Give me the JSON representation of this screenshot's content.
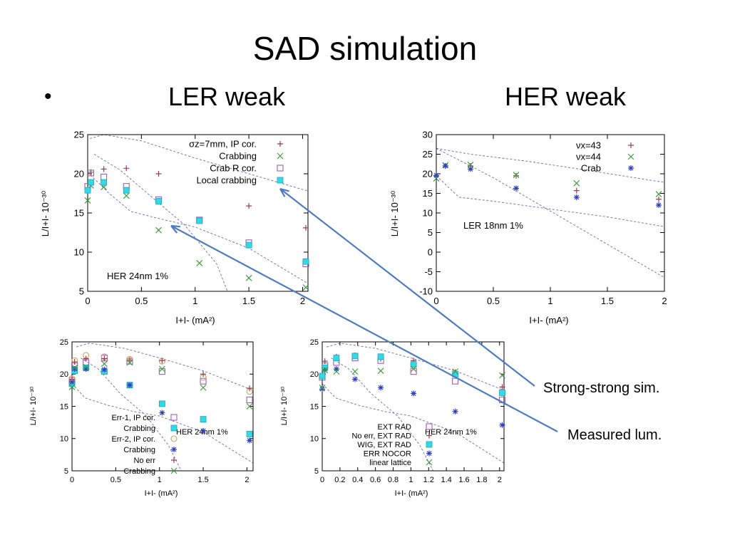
{
  "slide": {
    "title": "SAD simulation",
    "bullet": "•",
    "left_heading": "LER weak",
    "right_heading": "HER weak",
    "note_strong": "Strong-strong sim.",
    "note_measured": "Measured lum."
  },
  "chart_data": [
    {
      "id": "top-left",
      "type": "scatter",
      "title": "",
      "xlabel": "I+I- (mA²)",
      "ylabel": "L/I+I- 10⁻³⁰",
      "xlim": [
        0,
        2.05
      ],
      "ylim": [
        5,
        25
      ],
      "xticks": [
        0,
        0.5,
        1,
        1.5,
        2
      ],
      "xtick_labels": [
        "0",
        "0.5",
        "1",
        "1.5",
        "2"
      ],
      "yticks": [
        5,
        10,
        15,
        20,
        25
      ],
      "ytick_labels": [
        "5",
        "10",
        "15",
        "20",
        "25"
      ],
      "annotation": "HER 24nm 1%",
      "grid": false,
      "legend_position": "top-right",
      "series": [
        {
          "name": "σz=7mm, IP cor.",
          "marker": "plus",
          "color": "#9b3b5a",
          "x": [
            0.0,
            0.03,
            0.15,
            0.36,
            0.66,
            1.5,
            2.03
          ],
          "y": [
            18.0,
            20.2,
            20.6,
            20.7,
            20.0,
            15.9,
            13.1
          ]
        },
        {
          "name": "Crabbing",
          "marker": "x",
          "color": "#3f9b3f",
          "x": [
            0.0,
            0.03,
            0.15,
            0.36,
            0.66,
            1.04,
            1.5,
            2.03
          ],
          "y": [
            16.6,
            18.5,
            18.3,
            17.2,
            12.8,
            8.6,
            6.7,
            5.5
          ]
        },
        {
          "name": "Crab R cor.",
          "marker": "open-square",
          "color": "#a05cb8",
          "x": [
            0.0,
            0.03,
            0.15,
            0.36,
            0.66,
            1.04,
            1.5,
            2.03
          ],
          "y": [
            18.4,
            20.1,
            19.6,
            18.4,
            16.7,
            14.1,
            11.2,
            8.5
          ]
        },
        {
          "name": "Local crabbing",
          "marker": "filled-square",
          "color": "#35d9e6",
          "x": [
            0.0,
            0.03,
            0.15,
            0.36,
            0.66,
            1.04,
            1.5,
            2.03
          ],
          "y": [
            17.9,
            18.9,
            18.9,
            17.9,
            16.5,
            14.0,
            10.9,
            8.8
          ]
        }
      ],
      "envelope_lines": [
        [
          [
            0.02,
            24.5
          ],
          [
            0.15,
            25.0
          ],
          [
            0.5,
            24.2
          ],
          [
            1.0,
            22.0
          ],
          [
            1.5,
            20.0
          ],
          [
            2.05,
            17.8
          ]
        ],
        [
          [
            0.06,
            22.5
          ],
          [
            0.3,
            20.5
          ],
          [
            0.6,
            17.0
          ],
          [
            0.9,
            13.5
          ],
          [
            1.2,
            8.5
          ],
          [
            1.3,
            5.0
          ]
        ],
        [
          [
            0.0,
            20.2
          ],
          [
            0.2,
            17.5
          ],
          [
            0.4,
            15.2
          ],
          [
            0.6,
            14.5
          ],
          [
            1.0,
            13.2
          ],
          [
            1.5,
            10.5
          ],
          [
            2.05,
            6.0
          ]
        ]
      ]
    },
    {
      "id": "top-right",
      "type": "scatter",
      "title": "",
      "xlabel": "I+I- (mA²)",
      "ylabel": "L/I+I- 10⁻³⁰",
      "xlim": [
        0,
        2
      ],
      "ylim": [
        -10,
        30
      ],
      "xticks": [
        0,
        0.5,
        1,
        1.5,
        2
      ],
      "xtick_labels": [
        "0",
        "0.5",
        "1",
        "1.5",
        "2"
      ],
      "yticks": [
        -10,
        -5,
        0,
        5,
        10,
        15,
        20,
        25,
        30
      ],
      "ytick_labels": [
        "-10",
        "-5",
        "0",
        "5",
        "10",
        "15",
        "20",
        "25",
        "30"
      ],
      "annotation": "LER 18nm 1%",
      "grid": false,
      "legend_position": "top-right",
      "series": [
        {
          "name": "νx=43",
          "marker": "plus",
          "color": "#9b3b5a",
          "x": [
            0.0,
            0.08,
            0.3,
            0.7,
            1.23,
            1.95
          ],
          "y": [
            19.5,
            22.0,
            22.0,
            19.5,
            15.7,
            13.5
          ]
        },
        {
          "name": "νx=44",
          "marker": "x",
          "color": "#3f9b3f",
          "x": [
            0.0,
            0.08,
            0.3,
            0.7,
            1.23,
            1.95
          ],
          "y": [
            18.8,
            22.2,
            22.3,
            19.7,
            17.6,
            14.8
          ]
        },
        {
          "name": "Crab",
          "marker": "star",
          "color": "#2f3fb8",
          "x": [
            0.0,
            0.08,
            0.3,
            0.7,
            1.23,
            1.95
          ],
          "y": [
            19.6,
            22.0,
            21.2,
            16.3,
            14.0,
            12.0
          ]
        }
      ],
      "envelope_lines": [
        [
          [
            0.0,
            26.5
          ],
          [
            0.3,
            25.0
          ],
          [
            0.8,
            23.2
          ],
          [
            1.3,
            21.0
          ],
          [
            2.0,
            17.8
          ]
        ],
        [
          [
            0.0,
            26.5
          ],
          [
            0.5,
            19.0
          ],
          [
            1.0,
            10.5
          ],
          [
            1.5,
            2.0
          ],
          [
            2.0,
            -6.5
          ]
        ],
        [
          [
            0.0,
            19.5
          ],
          [
            0.2,
            14.0
          ],
          [
            0.5,
            13.0
          ],
          [
            1.0,
            11.0
          ],
          [
            1.5,
            9.0
          ],
          [
            2.0,
            6.5
          ]
        ]
      ]
    },
    {
      "id": "bottom-left",
      "type": "scatter",
      "title": "",
      "xlabel": "I+I- (mA²)",
      "ylabel": "L/I+I- 10⁻³⁰",
      "xlim": [
        0,
        2.07
      ],
      "ylim": [
        5,
        25
      ],
      "xticks": [
        0,
        0.5,
        1,
        1.5,
        2
      ],
      "xtick_labels": [
        "0",
        "0.5",
        "1",
        "1.5",
        "2"
      ],
      "yticks": [
        5,
        10,
        15,
        20,
        25
      ],
      "ytick_labels": [
        "5",
        "10",
        "15",
        "20",
        "25"
      ],
      "annotation": "HER 24nm 1%",
      "grid": false,
      "legend_position": "bottom-left",
      "series": [
        {
          "name": "Err-1, IP cor.",
          "marker": "open-square",
          "color": "#a05cb8",
          "x": [
            0.0,
            0.03,
            0.16,
            0.37,
            0.66,
            1.03,
            1.5,
            2.03
          ],
          "y": [
            19.0,
            21.3,
            21.8,
            22.5,
            22.0,
            20.4,
            18.9,
            16.0
          ]
        },
        {
          "name": "Crabbing",
          "marker": "filled-square",
          "color": "#35d9e6",
          "x": [
            0.0,
            0.03,
            0.16,
            0.37,
            0.66,
            1.03,
            1.5,
            2.03
          ],
          "y": [
            18.5,
            20.5,
            21.0,
            20.4,
            18.3,
            15.4,
            13.0,
            10.7
          ]
        },
        {
          "name": "Err-2, IP cor.",
          "marker": "circle",
          "color": "#c8a060",
          "x": [
            0.0,
            0.03,
            0.16,
            0.37,
            0.66,
            1.03,
            1.5,
            2.03
          ],
          "y": [
            19.3,
            22.1,
            22.9,
            22.7,
            22.3,
            22.0,
            19.5,
            17.3
          ]
        },
        {
          "name": "Crabbing",
          "marker": "star",
          "color": "#2f3fb8",
          "x": [
            0.0,
            0.03,
            0.16,
            0.37,
            0.66,
            1.03,
            1.5,
            2.03
          ],
          "y": [
            18.8,
            20.8,
            20.8,
            20.7,
            18.3,
            14.0,
            11.2,
            9.7
          ]
        },
        {
          "name": "No err",
          "marker": "plus",
          "color": "#9b3b5a",
          "x": [
            0.0,
            0.03,
            0.16,
            0.37,
            0.66,
            1.03,
            1.5,
            2.03
          ],
          "y": [
            19.2,
            21.9,
            22.4,
            22.4,
            22.2,
            22.1,
            20.0,
            17.8
          ]
        },
        {
          "name": "Crabbing",
          "marker": "x",
          "color": "#3f9b3f",
          "x": [
            0.0,
            0.03,
            0.16,
            0.37,
            0.66,
            1.03,
            1.5,
            2.03
          ],
          "y": [
            18.0,
            21.0,
            21.1,
            21.6,
            21.8,
            20.8,
            17.9,
            15.0
          ]
        }
      ],
      "envelope_lines": [
        [
          [
            0.05,
            24.2
          ],
          [
            0.2,
            24.8
          ],
          [
            0.6,
            24.0
          ],
          [
            1.0,
            22.5
          ],
          [
            1.5,
            20.5
          ],
          [
            2.07,
            17.5
          ]
        ],
        [
          [
            0.1,
            22.5
          ],
          [
            0.3,
            20.8
          ],
          [
            0.55,
            17.0
          ],
          [
            0.85,
            13.5
          ],
          [
            1.1,
            9.0
          ],
          [
            1.25,
            5.0
          ]
        ],
        [
          [
            0.0,
            18.5
          ],
          [
            0.15,
            16.3
          ],
          [
            0.4,
            15.2
          ],
          [
            0.7,
            14.2
          ],
          [
            1.0,
            13.5
          ],
          [
            1.5,
            11.0
          ],
          [
            2.07,
            6.2
          ]
        ]
      ]
    },
    {
      "id": "bottom-right",
      "type": "scatter",
      "title": "",
      "xlabel": "I+I- (mA²)",
      "ylabel": "L/I+I- 10⁻³⁰",
      "xlim": [
        0,
        2.05
      ],
      "ylim": [
        5,
        25
      ],
      "xticks": [
        0,
        0.2,
        0.4,
        0.6,
        0.8,
        1,
        1.2,
        1.4,
        1.6,
        1.8,
        2
      ],
      "xtick_labels": [
        "0",
        "0.2",
        "0.4",
        "0.6",
        "0.8",
        "1",
        "1.2",
        "1.4",
        "1.6",
        "1.8",
        "2"
      ],
      "yticks": [
        5,
        10,
        15,
        20,
        25
      ],
      "ytick_labels": [
        "5",
        "10",
        "15",
        "20",
        "25"
      ],
      "annotation": "HER 24nm 1%",
      "grid": false,
      "legend_position": "bottom-left",
      "series": [
        {
          "name": "EXT RAD",
          "marker": "open-square",
          "color": "#a05cb8",
          "x": [
            0.0,
            0.03,
            0.16,
            0.37,
            0.66,
            1.03,
            1.5,
            2.03
          ],
          "y": [
            19.5,
            21.3,
            21.8,
            22.5,
            22.1,
            20.4,
            18.9,
            16.0
          ]
        },
        {
          "name": "No err, EXT RAD",
          "marker": "plus",
          "color": "#9b3b5a",
          "x": [
            0.0,
            0.03,
            0.16,
            0.37,
            0.66,
            1.03,
            1.5,
            2.03
          ],
          "y": [
            19.4,
            22.0,
            22.7,
            22.9,
            22.4,
            22.1,
            20.3,
            18.0
          ]
        },
        {
          "name": "WIG, EXT RAD",
          "marker": "filled-square",
          "color": "#35d9e6",
          "x": [
            0.0,
            0.03,
            0.16,
            0.37,
            0.66,
            1.03,
            1.5,
            2.03
          ],
          "y": [
            19.7,
            21.0,
            22.5,
            22.8,
            22.7,
            21.5,
            20.0,
            17.1
          ]
        },
        {
          "name": "ERR NOCOR",
          "marker": "star",
          "color": "#2f3fb8",
          "x": [
            0.0,
            0.03,
            0.16,
            0.37,
            0.66,
            1.03,
            1.5,
            2.03
          ],
          "y": [
            17.7,
            20.6,
            20.8,
            19.2,
            17.9,
            17.0,
            14.2,
            12.1
          ]
        },
        {
          "name": "linear lattice",
          "marker": "x",
          "color": "#3f9b3f",
          "x": [
            0.0,
            0.03,
            0.16,
            0.37,
            0.66,
            1.03,
            1.5,
            2.03
          ],
          "y": [
            17.9,
            20.6,
            20.4,
            20.4,
            20.5,
            20.8,
            20.4,
            19.8
          ]
        }
      ],
      "envelope_lines": [
        [
          [
            0.05,
            24.2
          ],
          [
            0.2,
            24.8
          ],
          [
            0.6,
            24.0
          ],
          [
            1.0,
            22.5
          ],
          [
            1.5,
            20.5
          ],
          [
            2.05,
            17.5
          ]
        ],
        [
          [
            0.1,
            22.5
          ],
          [
            0.3,
            20.8
          ],
          [
            0.55,
            17.0
          ],
          [
            0.85,
            13.5
          ],
          [
            1.1,
            9.0
          ],
          [
            1.25,
            5.0
          ]
        ],
        [
          [
            0.0,
            18.5
          ],
          [
            0.15,
            16.3
          ],
          [
            0.4,
            15.2
          ],
          [
            0.7,
            14.2
          ],
          [
            1.0,
            13.5
          ],
          [
            1.5,
            11.0
          ],
          [
            2.05,
            6.2
          ]
        ]
      ]
    }
  ]
}
